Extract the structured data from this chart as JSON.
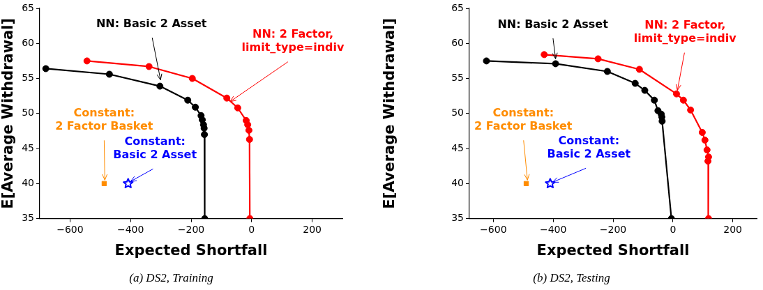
{
  "chart_data": [
    {
      "type": "line",
      "title": "(a) DS2, Training",
      "xlabel": "Expected Shortfall",
      "ylabel": "E[Average Withdrawal]",
      "xlim": [
        -700,
        300
      ],
      "xticks": [
        -600,
        -400,
        -200,
        0,
        200
      ],
      "ylim": [
        35,
        65
      ],
      "yticks": [
        35,
        40,
        45,
        50,
        55,
        60,
        65
      ],
      "marker": "circle",
      "series": [
        {
          "color": "#000000",
          "x": [
            -680,
            -470,
            -303,
            -211,
            -186,
            -167,
            -163,
            -159,
            -157,
            -156,
            -155
          ],
          "values": [
            56.4,
            55.6,
            53.9,
            51.9,
            50.9,
            49.7,
            49.1,
            48.4,
            47.9,
            47.0,
            35
          ]
        },
        {
          "color": "#ff0000",
          "x": [
            -544,
            -339,
            -196,
            -82,
            -46,
            -18,
            -13,
            -9,
            -7,
            -6
          ],
          "values": [
            57.5,
            56.7,
            55.0,
            52.2,
            50.8,
            49.0,
            48.4,
            47.6,
            46.3,
            35
          ]
        },
        {
          "type": "scatter",
          "marker": "square",
          "color": "#ff8c00",
          "x": [
            -487
          ],
          "values": [
            40
          ]
        },
        {
          "type": "scatter",
          "marker": "star",
          "color": "#0000ff",
          "x": [
            -408
          ],
          "values": [
            40
          ]
        }
      ],
      "annotations": [
        {
          "text": "NN: Basic 2 Asset",
          "x": -301,
          "y": 54.8
        },
        {
          "text": "NN: 2 Factor,\nlimit_type=indiv",
          "x": -71,
          "y": 51.7
        },
        {
          "text": "Constant:\n2 Factor Basket",
          "x": -485,
          "y": 40.5
        },
        {
          "text": "Constant:\nBasic 2 Asset",
          "x": -400,
          "y": 40.3
        }
      ]
    },
    {
      "type": "line",
      "title": "(b) DS2, Testing",
      "xlabel": "Expected Shortfall",
      "ylabel": "E[Average Withdrawal]",
      "xlim": [
        -680,
        280
      ],
      "xticks": [
        -600,
        -400,
        -200,
        0,
        200
      ],
      "ylim": [
        35,
        65
      ],
      "yticks": [
        35,
        40,
        45,
        50,
        55,
        60,
        65
      ],
      "marker": "circle",
      "series": [
        {
          "color": "#000000",
          "x": [
            -623,
            -392,
            -219,
            -126,
            -94,
            -62,
            -50,
            -39,
            -37,
            -36,
            -5
          ],
          "values": [
            57.5,
            57.1,
            56.0,
            54.3,
            53.3,
            51.9,
            50.4,
            49.9,
            49.5,
            48.9,
            35
          ]
        },
        {
          "color": "#ff0000",
          "x": [
            -430,
            -250,
            -112,
            12,
            35,
            59,
            98,
            107,
            114,
            119,
            117,
            119
          ],
          "values": [
            58.4,
            57.8,
            56.3,
            52.8,
            51.9,
            50.5,
            47.3,
            46.2,
            44.8,
            43.8,
            43.2,
            35
          ]
        },
        {
          "type": "scatter",
          "marker": "square",
          "color": "#ff8c00",
          "x": [
            -490
          ],
          "values": [
            40
          ]
        },
        {
          "type": "scatter",
          "marker": "star",
          "color": "#0000ff",
          "x": [
            -410
          ],
          "values": [
            40
          ]
        }
      ],
      "annotations": [
        {
          "text": "NN: Basic 2 Asset",
          "x": -392,
          "y": 57.8
        },
        {
          "text": "NN: 2 Factor,\nlimit_type=indiv",
          "x": 15,
          "y": 53.3
        },
        {
          "text": "Constant:\n2 Factor Basket",
          "x": -486,
          "y": 40.5
        },
        {
          "text": "Constant:\nBasic 2 Asset",
          "x": -402,
          "y": 40.2
        }
      ]
    }
  ]
}
